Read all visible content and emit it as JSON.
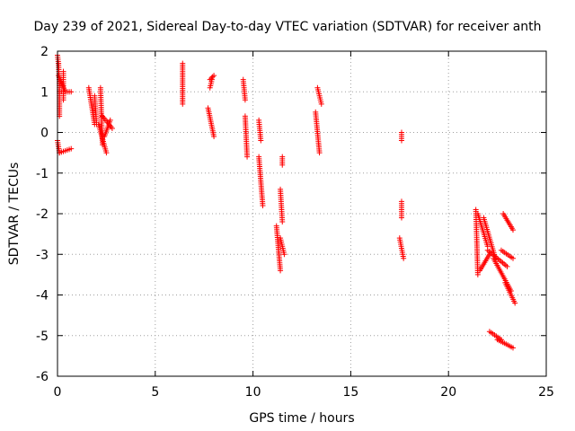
{
  "chart_data": {
    "type": "scatter",
    "title": "Day 239 of 2021, Sidereal Day-to-day VTEC variation (SDTVAR) for receiver anth",
    "xlabel": "GPS time / hours",
    "ylabel": "SDTVAR / TECUs",
    "xlim": [
      0,
      25
    ],
    "ylim": [
      -6,
      2
    ],
    "xticks": [
      0,
      5,
      10,
      15,
      20,
      25
    ],
    "yticks": [
      -6,
      -5,
      -4,
      -3,
      -2,
      -1,
      0,
      1,
      2
    ],
    "xtick_labels": [
      "0",
      "5",
      "10",
      "15",
      "20",
      "25"
    ],
    "ytick_labels": [
      "-6",
      "-5",
      "-4",
      "-3",
      "-2",
      "-1",
      "0",
      "1",
      "2"
    ],
    "grid": true,
    "marker": "+",
    "marker_color": "#ff0000",
    "series": [
      {
        "name": "SDTVAR",
        "segments": [
          [
            0.0,
            1.9,
            0.05,
            1.7
          ],
          [
            0.05,
            1.7,
            0.1,
            1.2
          ],
          [
            0.1,
            1.2,
            0.1,
            0.4
          ],
          [
            0.05,
            1.4,
            0.4,
            1.0
          ],
          [
            0.1,
            1.0,
            0.7,
            1.0
          ],
          [
            0.3,
            1.5,
            0.3,
            0.8
          ],
          [
            0.0,
            -0.2,
            0.1,
            -0.5
          ],
          [
            0.1,
            -0.5,
            0.7,
            -0.4
          ],
          [
            1.6,
            1.1,
            1.9,
            0.2
          ],
          [
            1.9,
            0.9,
            2.0,
            0.2
          ],
          [
            2.2,
            1.1,
            2.3,
            -0.3
          ],
          [
            2.3,
            0.4,
            2.8,
            0.1
          ],
          [
            2.4,
            -0.1,
            2.7,
            0.3
          ],
          [
            2.1,
            0.2,
            2.5,
            -0.5
          ],
          [
            6.4,
            1.7,
            6.4,
            0.7
          ],
          [
            7.8,
            1.3,
            8.0,
            1.4
          ],
          [
            7.8,
            1.1,
            7.9,
            1.3
          ],
          [
            7.7,
            0.6,
            8.0,
            -0.1
          ],
          [
            9.5,
            1.3,
            9.6,
            0.8
          ],
          [
            9.6,
            0.4,
            9.7,
            -0.6
          ],
          [
            10.3,
            0.3,
            10.4,
            -0.2
          ],
          [
            10.3,
            -0.6,
            10.5,
            -1.8
          ],
          [
            11.4,
            -1.4,
            11.5,
            -2.2
          ],
          [
            11.2,
            -2.3,
            11.4,
            -3.4
          ],
          [
            11.4,
            -2.6,
            11.6,
            -3.0
          ],
          [
            11.5,
            -0.6,
            11.5,
            -0.8
          ],
          [
            13.3,
            1.1,
            13.5,
            0.7
          ],
          [
            13.2,
            0.5,
            13.4,
            -0.5
          ],
          [
            17.6,
            0.0,
            17.6,
            -0.2
          ],
          [
            17.6,
            -1.7,
            17.6,
            -2.1
          ],
          [
            17.5,
            -2.6,
            17.7,
            -3.1
          ],
          [
            21.4,
            -1.9,
            21.5,
            -3.5
          ],
          [
            21.5,
            -2.0,
            22.0,
            -2.8
          ],
          [
            21.8,
            -2.1,
            22.4,
            -3.1
          ],
          [
            22.0,
            -2.9,
            23.0,
            -3.3
          ],
          [
            21.6,
            -3.4,
            22.1,
            -3.0
          ],
          [
            22.3,
            -3.1,
            23.2,
            -3.9
          ],
          [
            22.9,
            -3.7,
            23.4,
            -4.2
          ],
          [
            22.1,
            -4.9,
            22.7,
            -5.1
          ],
          [
            22.5,
            -5.1,
            23.3,
            -5.3
          ],
          [
            22.8,
            -2.0,
            23.3,
            -2.4
          ],
          [
            22.7,
            -2.9,
            23.3,
            -3.1
          ]
        ]
      }
    ]
  }
}
